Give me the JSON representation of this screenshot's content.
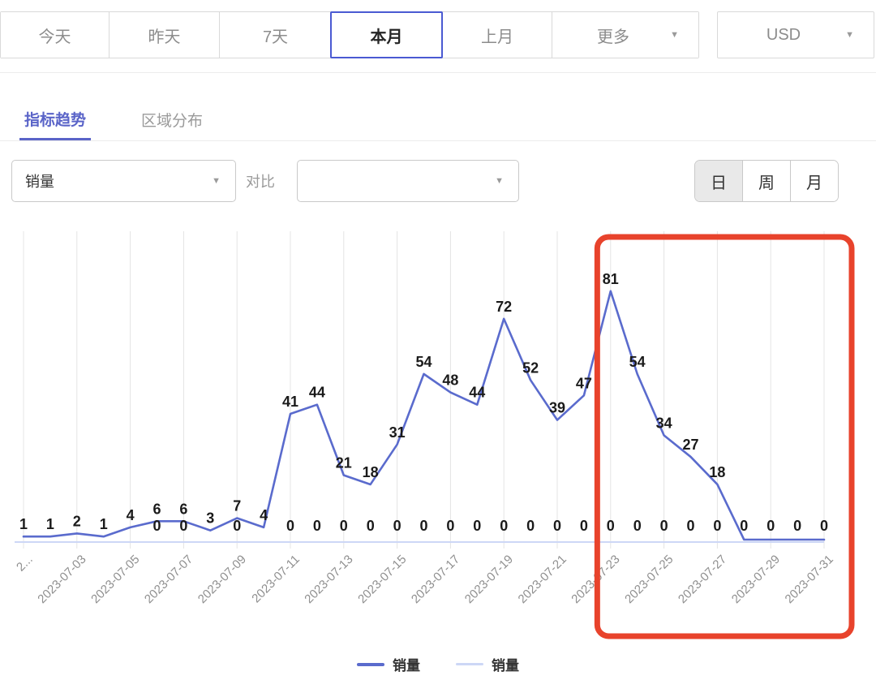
{
  "header": {
    "date_range_buttons": [
      {
        "label": "今天",
        "selected": false
      },
      {
        "label": "昨天",
        "selected": false
      },
      {
        "label": "7天",
        "selected": false
      },
      {
        "label": "本月",
        "selected": true
      },
      {
        "label": "上月",
        "selected": false
      },
      {
        "label": "更多",
        "selected": false,
        "has_dropdown": true
      }
    ],
    "currency_dropdown": {
      "value": "USD"
    }
  },
  "tabs": [
    {
      "label": "指标趋势",
      "active": true
    },
    {
      "label": "区域分布",
      "active": false
    }
  ],
  "filter_bar": {
    "metric_dropdown": {
      "value": "销量"
    },
    "compare_label": "对比",
    "compare_dropdown": {
      "value": ""
    },
    "granularity_toggle": [
      {
        "label": "日",
        "selected": true
      },
      {
        "label": "周",
        "selected": false
      },
      {
        "label": "月",
        "selected": false
      }
    ]
  },
  "chart_data": {
    "type": "line",
    "x": [
      "2023-07-01",
      "2023-07-02",
      "2023-07-03",
      "2023-07-04",
      "2023-07-05",
      "2023-07-06",
      "2023-07-07",
      "2023-07-08",
      "2023-07-09",
      "2023-07-10",
      "2023-07-11",
      "2023-07-12",
      "2023-07-13",
      "2023-07-14",
      "2023-07-15",
      "2023-07-16",
      "2023-07-17",
      "2023-07-18",
      "2023-07-19",
      "2023-07-20",
      "2023-07-21",
      "2023-07-22",
      "2023-07-23",
      "2023-07-24",
      "2023-07-25",
      "2023-07-26",
      "2023-07-27",
      "2023-07-28",
      "2023-07-29",
      "2023-07-30",
      "2023-07-31"
    ],
    "x_tick_labels": [
      "2...",
      "2023-07-03",
      "2023-07-05",
      "2023-07-07",
      "2023-07-09",
      "2023-07-11",
      "2023-07-13",
      "2023-07-15",
      "2023-07-17",
      "2023-07-19",
      "2023-07-21",
      "2023-07-23",
      "2023-07-25",
      "2023-07-27",
      "2023-07-29",
      "2023-07-31"
    ],
    "series": [
      {
        "name": "销量",
        "color": "#5a6bcd",
        "values": [
          1,
          1,
          2,
          1,
          4,
          6,
          6,
          3,
          7,
          4,
          41,
          44,
          21,
          18,
          31,
          54,
          48,
          44,
          72,
          52,
          39,
          47,
          81,
          54,
          34,
          27,
          18,
          0,
          0,
          0,
          0
        ]
      },
      {
        "name": "销量",
        "color": "#cdd7f6",
        "values": [
          0,
          0,
          0,
          0,
          0,
          0,
          0,
          0,
          0,
          0,
          0,
          0,
          0,
          0,
          0,
          0,
          0,
          0,
          0,
          0,
          0,
          0,
          0,
          0,
          0,
          0,
          0,
          0,
          0,
          0,
          0
        ]
      }
    ],
    "zero_label_indices": [
      5,
      6,
      8,
      10,
      11,
      12,
      13,
      14,
      15,
      16,
      17,
      18,
      19,
      20,
      21,
      22,
      23,
      24,
      25,
      26,
      27,
      28,
      29,
      30
    ],
    "ylim": [
      0,
      95
    ],
    "grid": "vertical-only",
    "legend_position": "bottom",
    "annotation": {
      "shape": "rectangle",
      "color": "#e8432c",
      "from": "2023-07-23",
      "to": "2023-07-31"
    }
  },
  "legend": [
    {
      "label": "销量",
      "color": "#5a6bcd"
    },
    {
      "label": "销量",
      "color": "#cdd7f6"
    }
  ],
  "colors": {
    "accent_blue": "#4a5ad2",
    "tab_active": "#5a64c8",
    "line_primary": "#5a6bcd",
    "line_secondary": "#cdd7f6",
    "annotation_red": "#e8432c",
    "value_label": "#1a1a1a",
    "axis_label": "#8f8f8f",
    "gridline": "#e4e4e4"
  }
}
